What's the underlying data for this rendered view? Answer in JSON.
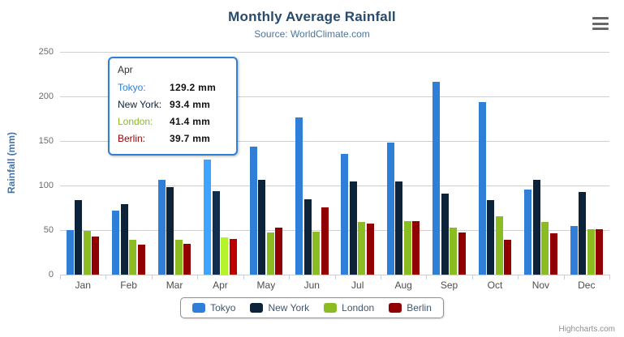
{
  "chart": {
    "title": "Monthly Average Rainfall",
    "subtitle": "Source: WorldClimate.com",
    "credits": "Highcharts.com",
    "export_icon": "hamburger-menu-icon"
  },
  "chart_data": {
    "type": "bar",
    "title": "Monthly Average Rainfall",
    "subtitle": "Source: WorldClimate.com",
    "categories": [
      "Jan",
      "Feb",
      "Mar",
      "Apr",
      "May",
      "Jun",
      "Jul",
      "Aug",
      "Sep",
      "Oct",
      "Nov",
      "Dec"
    ],
    "series": [
      {
        "name": "Tokyo",
        "color": "#2f7ed8",
        "values": [
          49.9,
          71.5,
          106.4,
          129.2,
          144.0,
          176.0,
          135.6,
          148.5,
          216.4,
          194.1,
          95.6,
          54.4
        ]
      },
      {
        "name": "New York",
        "color": "#0d233a",
        "values": [
          83.6,
          78.8,
          98.5,
          93.4,
          106.0,
          84.5,
          105.0,
          104.3,
          91.2,
          83.5,
          106.6,
          92.3
        ]
      },
      {
        "name": "London",
        "color": "#8bbc21",
        "values": [
          48.9,
          38.8,
          39.3,
          41.4,
          47.0,
          48.3,
          59.0,
          59.6,
          52.4,
          65.2,
          59.3,
          51.2
        ]
      },
      {
        "name": "Berlin",
        "color": "#910000",
        "values": [
          42.4,
          33.2,
          34.5,
          39.7,
          52.6,
          75.5,
          57.4,
          60.4,
          47.6,
          39.1,
          46.8,
          51.1
        ]
      }
    ],
    "xlabel": "",
    "ylabel": "Rainfall (mm)",
    "ylim": [
      0,
      250
    ],
    "yticks": [
      0,
      50,
      100,
      150,
      200,
      250
    ],
    "grid": true,
    "legend_position": "bottom",
    "hovered_category": "Apr",
    "hovered_category_index": 3
  },
  "tooltip": {
    "category": "Apr",
    "rows": [
      {
        "name": "Tokyo",
        "value": "129.2 mm"
      },
      {
        "name": "New York",
        "value": "93.4 mm"
      },
      {
        "name": "London",
        "value": "41.4 mm"
      },
      {
        "name": "Berlin",
        "value": "39.7 mm"
      }
    ]
  },
  "colors": {
    "title": "#274b6d",
    "subtitle": "#4d759e",
    "y_axis_title": "#4572a7",
    "gridline": "#d0d0d0",
    "axis_line": "#c0d0e0",
    "y_labels": "#6b6b6b",
    "x_labels": "#4d4d4d",
    "legend_text": "#3e576f",
    "legend_border": "#909090",
    "tooltip_border": "#2f7ed8",
    "credits": "#909090"
  }
}
